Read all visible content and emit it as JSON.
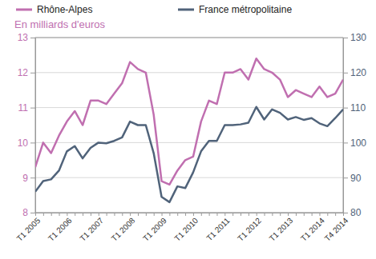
{
  "chart_data": {
    "type": "line",
    "title": "En milliards d'euros",
    "categories": [
      "T1 2005",
      null,
      null,
      null,
      "T1 2006",
      null,
      null,
      null,
      "T1 2007",
      null,
      null,
      null,
      "T1 2008",
      null,
      null,
      null,
      "T1 2009",
      null,
      null,
      null,
      "T1 2010",
      null,
      null,
      null,
      "T1 2011",
      null,
      null,
      null,
      "T1 2012",
      null,
      null,
      null,
      "T1 2013",
      null,
      null,
      null,
      "T1 2014",
      null,
      null,
      "T4 2014"
    ],
    "series": [
      {
        "name": "Rhône-Alpes",
        "color": "#c06fb0",
        "values": [
          9.3,
          10.0,
          9.7,
          10.2,
          10.6,
          10.9,
          10.5,
          11.2,
          11.2,
          11.1,
          11.4,
          11.7,
          12.3,
          12.1,
          12.0,
          10.8,
          8.9,
          8.8,
          9.2,
          9.5,
          9.6,
          10.6,
          11.2,
          11.1,
          12.0,
          12.0,
          12.1,
          11.8,
          12.4,
          12.1,
          12.0,
          11.8,
          11.3,
          11.5,
          11.4,
          11.3,
          11.6,
          11.3,
          11.4,
          11.8
        ]
      },
      {
        "name": "France métropolitaine",
        "color": "#50637a",
        "axis": "y2",
        "values": [
          86,
          89,
          89.5,
          92,
          97.5,
          99,
          95.5,
          98.5,
          100,
          99.8,
          100.5,
          101.5,
          106,
          105,
          105,
          97,
          84.5,
          83,
          87.5,
          87,
          91.5,
          97.5,
          100.5,
          100.5,
          105,
          105,
          105.2,
          105.7,
          110.2,
          106.6,
          109.5,
          108.5,
          106.6,
          107.3,
          106.5,
          107,
          105.5,
          104.7,
          107,
          109.5
        ]
      }
    ],
    "ylim": [
      8,
      13
    ],
    "yticks": [
      8,
      9,
      10,
      11,
      12,
      13
    ],
    "y2lim": [
      80,
      130
    ],
    "y2ticks": [
      80,
      90,
      100,
      110,
      120,
      130
    ],
    "grid": true,
    "legend": "top"
  }
}
